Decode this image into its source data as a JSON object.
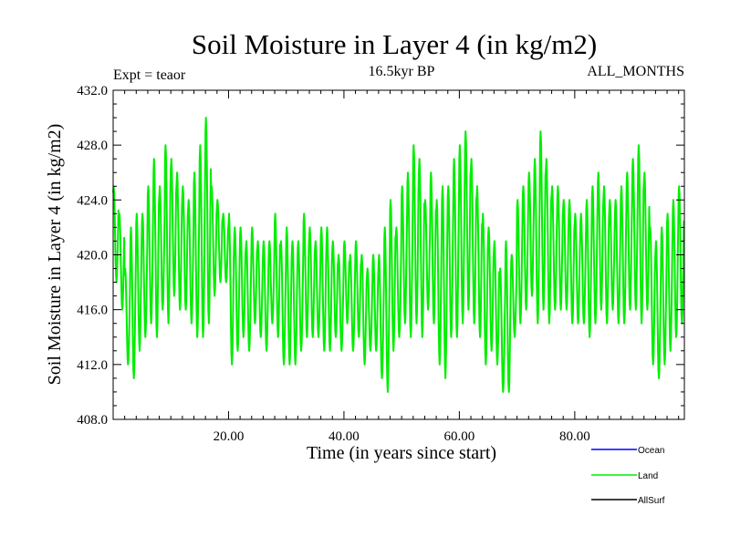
{
  "chart_data": {
    "type": "line",
    "title": "Soil Moisture in Layer 4 (in kg/m2)",
    "subtitle": "16.5kyr BP",
    "left_annotation": "Expt = teaor",
    "right_annotation": "ALL_MONTHS",
    "xlabel": "Time (in years since start)",
    "ylabel": "Soil Moisture in Layer 4 (in kg/m2)",
    "xlim": [
      0,
      99
    ],
    "ylim": [
      408,
      432
    ],
    "x_ticks": [
      20,
      40,
      60,
      80
    ],
    "x_tick_labels": [
      "20.00",
      "40.00",
      "60.00",
      "80.00"
    ],
    "y_ticks": [
      408,
      412,
      416,
      420,
      424,
      428,
      432
    ],
    "y_tick_labels": [
      "408.0",
      "412.0",
      "416.0",
      "420.0",
      "424.0",
      "428.0",
      "432.0"
    ],
    "legend": [
      "Ocean",
      "Land",
      "AllSurf"
    ],
    "series": [
      {
        "name": "Land",
        "color": "#00ee00",
        "note": "monthly values; annual cycle from yearly max/min",
        "years_start": 0,
        "annual_max": [
          425,
          423,
          419,
          422,
          423,
          423,
          425,
          427,
          425,
          428,
          427,
          426,
          425,
          424,
          426,
          428,
          430,
          425,
          424,
          423,
          423,
          422,
          422,
          421,
          422,
          421,
          421,
          421,
          423,
          421,
          422,
          421,
          421,
          423,
          422,
          421,
          422,
          422,
          421,
          420,
          421,
          420,
          421,
          420,
          419,
          420,
          420,
          422,
          424,
          422,
          425,
          426,
          428,
          427,
          424,
          426,
          424,
          425,
          425,
          427,
          428,
          429,
          427,
          425,
          423,
          422,
          421,
          419,
          421,
          420,
          424,
          425,
          426,
          427,
          429,
          427,
          425,
          425,
          424,
          424,
          423,
          423,
          424,
          425,
          426,
          425,
          424,
          424,
          425,
          426,
          427,
          428,
          426,
          422,
          421,
          422,
          423,
          424,
          425
        ],
        "annual_min": [
          418,
          416,
          412,
          411,
          413,
          414,
          415,
          414,
          416,
          415,
          417,
          416,
          416,
          415,
          414,
          414,
          415,
          417,
          418,
          418,
          412,
          413,
          414,
          413,
          415,
          414,
          413,
          415,
          414,
          412,
          412,
          412,
          413,
          414,
          414,
          414,
          413,
          413,
          414,
          413,
          415,
          413,
          414,
          412,
          413,
          413,
          411,
          410,
          413,
          414,
          415,
          414,
          415,
          414,
          416,
          415,
          412,
          411,
          414,
          414,
          415,
          416,
          415,
          414,
          412,
          413,
          412,
          410,
          410,
          414,
          415,
          416,
          417,
          415,
          416,
          415,
          416,
          416,
          416,
          415,
          415,
          415,
          414,
          415,
          416,
          415,
          416,
          415,
          415,
          416,
          416,
          415,
          416,
          412,
          411,
          412,
          413,
          414,
          415
        ]
      },
      {
        "name": "Ocean",
        "color": "#0000ff",
        "values": []
      },
      {
        "name": "AllSurf",
        "color": "#000000",
        "values": []
      }
    ]
  }
}
